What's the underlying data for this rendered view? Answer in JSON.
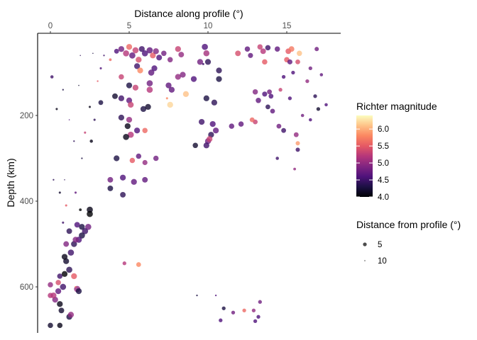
{
  "chart_data": {
    "type": "scatter",
    "xlabel": "Distance along profile (°)",
    "ylabel": "Depth (km)",
    "x_axis_position": "top",
    "y_axis_reversed": true,
    "xlim": [
      -0.8,
      18.4
    ],
    "ylim": [
      707,
      -10
    ],
    "x_ticks": [
      0,
      5,
      10,
      15
    ],
    "y_ticks": [
      200,
      400,
      600
    ],
    "grid": false,
    "color_legend": {
      "title": "Richter magnitude",
      "ticks": [
        4.0,
        4.5,
        5.0,
        5.5,
        6.0
      ],
      "tick_labels": [
        "4.0",
        "4.5",
        "5.0",
        "5.5",
        "6.0"
      ],
      "range": [
        4.0,
        6.4
      ],
      "palette": "magma"
    },
    "size_legend": {
      "title": "Distance from profile (°)",
      "entries": [
        5,
        10
      ],
      "entry_labels": [
        "5",
        "10"
      ]
    },
    "point_fields": [
      "distance_along_profile",
      "depth",
      "magnitude",
      "distance_from_profile"
    ],
    "points": [
      [
        4.2,
        50,
        4.6,
        3
      ],
      [
        4.5,
        45,
        4.8,
        1
      ],
      [
        4.8,
        55,
        5.2,
        0.5
      ],
      [
        5.0,
        40,
        5.6,
        1
      ],
      [
        5.2,
        60,
        4.7,
        0.3
      ],
      [
        5.4,
        48,
        5.3,
        0.5
      ],
      [
        5.6,
        70,
        5.4,
        0.8
      ],
      [
        5.8,
        45,
        4.5,
        1
      ],
      [
        6.0,
        55,
        4.6,
        0.5
      ],
      [
        6.3,
        48,
        4.7,
        0.4
      ],
      [
        6.5,
        60,
        5.5,
        1
      ],
      [
        6.7,
        50,
        4.9,
        0.8
      ],
      [
        6.9,
        65,
        4.6,
        1.2
      ],
      [
        7.2,
        55,
        4.8,
        2
      ],
      [
        7.6,
        70,
        4.9,
        2
      ],
      [
        8.1,
        45,
        5.3,
        1
      ],
      [
        8.3,
        58,
        5.0,
        1.5
      ],
      [
        9.8,
        40,
        4.6,
        0.5
      ],
      [
        9.9,
        55,
        5.1,
        0.7
      ],
      [
        10.0,
        75,
        4.4,
        1
      ],
      [
        9.5,
        75,
        4.8,
        1
      ],
      [
        11.9,
        55,
        5.4,
        1.5
      ],
      [
        12.5,
        45,
        4.7,
        2
      ],
      [
        12.7,
        60,
        4.7,
        2.5
      ],
      [
        13.3,
        40,
        5.3,
        2
      ],
      [
        13.5,
        50,
        5.2,
        1.5
      ],
      [
        13.8,
        42,
        4.5,
        2
      ],
      [
        14.4,
        45,
        4.7,
        2
      ],
      [
        15.1,
        50,
        5.5,
        1.5
      ],
      [
        15.3,
        45,
        5.7,
        1.5
      ],
      [
        15.8,
        55,
        6.1,
        2
      ],
      [
        16.9,
        45,
        4.8,
        4
      ],
      [
        13.6,
        75,
        5.5,
        2
      ],
      [
        15.0,
        70,
        5.5,
        2
      ],
      [
        15.2,
        75,
        4.7,
        2.5
      ],
      [
        15.7,
        75,
        5.4,
        3
      ],
      [
        5.5,
        85,
        4.5,
        1
      ],
      [
        5.7,
        95,
        5.8,
        1
      ],
      [
        4.5,
        110,
        5.3,
        2
      ],
      [
        6.4,
        100,
        4.7,
        0.5
      ],
      [
        6.6,
        90,
        4.6,
        1
      ],
      [
        8.1,
        110,
        5.0,
        1
      ],
      [
        8.4,
        105,
        4.9,
        1
      ],
      [
        9.1,
        115,
        4.6,
        1
      ],
      [
        10.7,
        95,
        4.4,
        1
      ],
      [
        10.7,
        115,
        4.3,
        1
      ],
      [
        6.3,
        125,
        4.8,
        0.5
      ],
      [
        6.3,
        140,
        5.2,
        0.5
      ],
      [
        7.5,
        130,
        4.7,
        1
      ],
      [
        7.7,
        140,
        4.7,
        1
      ],
      [
        5.0,
        130,
        4.3,
        1
      ],
      [
        5.4,
        135,
        5.3,
        1
      ],
      [
        8.6,
        150,
        6.1,
        1
      ],
      [
        9.9,
        160,
        4.3,
        1
      ],
      [
        10.4,
        170,
        4.4,
        1
      ],
      [
        7.6,
        175,
        6.2,
        0.8
      ],
      [
        5.0,
        165,
        4.7,
        1
      ],
      [
        5.1,
        175,
        5.3,
        1
      ],
      [
        4.5,
        160,
        4.5,
        1
      ],
      [
        4.1,
        155,
        4.2,
        1.5
      ],
      [
        3.2,
        170,
        4.3,
        3
      ],
      [
        13.0,
        145,
        4.9,
        2
      ],
      [
        13.6,
        150,
        4.6,
        2.5
      ],
      [
        13.2,
        165,
        4.7,
        2
      ],
      [
        13.9,
        145,
        4.8,
        3
      ],
      [
        14.0,
        155,
        4.6,
        3
      ],
      [
        13.8,
        180,
        4.4,
        3
      ],
      [
        14.1,
        190,
        4.7,
        3
      ],
      [
        13.0,
        215,
        5.3,
        3
      ],
      [
        12.8,
        210,
        5.6,
        3
      ],
      [
        5.9,
        185,
        4.3,
        1
      ],
      [
        6.2,
        180,
        4.2,
        1
      ],
      [
        4.5,
        205,
        4.4,
        1
      ],
      [
        5.0,
        210,
        5.0,
        1
      ],
      [
        4.9,
        225,
        4.1,
        1
      ],
      [
        5.1,
        245,
        5.2,
        0.5
      ],
      [
        5.5,
        235,
        4.6,
        1
      ],
      [
        6.0,
        235,
        5.6,
        2
      ],
      [
        4.8,
        250,
        4.1,
        0.5
      ],
      [
        9.6,
        215,
        4.5,
        1
      ],
      [
        10.3,
        220,
        4.6,
        1
      ],
      [
        10.5,
        235,
        4.7,
        1
      ],
      [
        10.2,
        245,
        4.4,
        1
      ],
      [
        10.0,
        260,
        4.8,
        0.8
      ],
      [
        9.9,
        270,
        4.5,
        1
      ],
      [
        10.1,
        255,
        5.3,
        1
      ],
      [
        9.2,
        270,
        4.2,
        2
      ],
      [
        11.5,
        225,
        4.7,
        2
      ],
      [
        12.1,
        220,
        4.7,
        2
      ],
      [
        14.5,
        225,
        4.8,
        3
      ],
      [
        14.8,
        235,
        4.5,
        3
      ],
      [
        15.6,
        245,
        5.0,
        3
      ],
      [
        15.7,
        265,
        5.9,
        4
      ],
      [
        15.7,
        280,
        4.5,
        4
      ],
      [
        4.2,
        300,
        4.3,
        1
      ],
      [
        5.2,
        305,
        5.5,
        2
      ],
      [
        5.6,
        295,
        4.7,
        2
      ],
      [
        6.0,
        310,
        5.0,
        2.5
      ],
      [
        6.7,
        300,
        4.8,
        2
      ],
      [
        4.6,
        345,
        4.6,
        1
      ],
      [
        5.3,
        355,
        4.7,
        1
      ],
      [
        6.0,
        350,
        4.7,
        1.5
      ],
      [
        3.8,
        370,
        4.3,
        1.5
      ],
      [
        4.6,
        385,
        4.4,
        1.5
      ],
      [
        3.8,
        350,
        4.8,
        1.5
      ],
      [
        2.5,
        420,
        4.1,
        0.5
      ],
      [
        2.5,
        430,
        4.0,
        0.5
      ],
      [
        2.4,
        460,
        4.8,
        0.5
      ],
      [
        2.2,
        470,
        4.5,
        0.5
      ],
      [
        2.0,
        480,
        4.3,
        0.5
      ],
      [
        1.8,
        490,
        4.6,
        0.5
      ],
      [
        1.5,
        500,
        4.4,
        0.8
      ],
      [
        1.3,
        520,
        4.5,
        0.5
      ],
      [
        1.0,
        540,
        4.2,
        1
      ],
      [
        1.2,
        560,
        4.4,
        0.5
      ],
      [
        0.9,
        570,
        4.0,
        1
      ],
      [
        1.5,
        575,
        5.5,
        1
      ],
      [
        0.8,
        600,
        4.5,
        0.5
      ],
      [
        0.5,
        610,
        4.7,
        1
      ],
      [
        0.3,
        630,
        4.9,
        1
      ],
      [
        0.2,
        620,
        5.2,
        1
      ],
      [
        0.6,
        640,
        4.1,
        1
      ],
      [
        1.7,
        605,
        5.0,
        0.2
      ],
      [
        1.8,
        610,
        4.3,
        1
      ],
      [
        1.2,
        670,
        4.3,
        1
      ],
      [
        1.3,
        665,
        5.0,
        0.8
      ],
      [
        0.7,
        655,
        4.2,
        1.5
      ],
      [
        0.0,
        690,
        4.2,
        2
      ],
      [
        0.6,
        690,
        4.1,
        2
      ],
      [
        1.0,
        500,
        4.9,
        1.5
      ],
      [
        0.6,
        575,
        4.5,
        2
      ],
      [
        1.6,
        490,
        4.9,
        1
      ],
      [
        2.0,
        460,
        4.3,
        1
      ],
      [
        1.7,
        455,
        4.6,
        1.5
      ],
      [
        1.2,
        470,
        4.4,
        1.5
      ],
      [
        0.9,
        530,
        4.1,
        1
      ],
      [
        0.5,
        590,
        5.4,
        2
      ],
      [
        0.0,
        595,
        5.0,
        2
      ],
      [
        0.0,
        620,
        5.2,
        2
      ],
      [
        0.1,
        110,
        4.5,
        6
      ],
      [
        0.4,
        185,
        4.1,
        8
      ],
      [
        0.8,
        140,
        4.3,
        9
      ],
      [
        1.2,
        210,
        4.6,
        10
      ],
      [
        1.5,
        260,
        4.4,
        9
      ],
      [
        1.8,
        130,
        4.2,
        10
      ],
      [
        2.0,
        300,
        4.3,
        9
      ],
      [
        2.2,
        240,
        5.3,
        8
      ],
      [
        2.5,
        180,
        4.1,
        8
      ],
      [
        2.8,
        210,
        4.4,
        8
      ],
      [
        3.0,
        120,
        5.5,
        9
      ],
      [
        3.2,
        90,
        4.6,
        8
      ],
      [
        0.2,
        350,
        4.4,
        9
      ],
      [
        0.6,
        380,
        4.2,
        8
      ],
      [
        1.0,
        410,
        5.5,
        8
      ],
      [
        0.9,
        350,
        4.4,
        10
      ],
      [
        1.6,
        380,
        4.7,
        8
      ],
      [
        1.9,
        420,
        4.0,
        7
      ],
      [
        2.6,
        260,
        4.1,
        6
      ],
      [
        3.4,
        60,
        4.5,
        9
      ],
      [
        3.8,
        70,
        5.6,
        7
      ],
      [
        2.7,
        55,
        4.3,
        10
      ],
      [
        1.9,
        60,
        4.4,
        10
      ],
      [
        7.4,
        160,
        5.8,
        8
      ],
      [
        9.7,
        80,
        4.5,
        8
      ],
      [
        9.3,
        620,
        4.3,
        9
      ],
      [
        10.5,
        620,
        4.6,
        9
      ],
      [
        1.6,
        600,
        5.7,
        9
      ],
      [
        0.8,
        450,
        4.5,
        8
      ],
      [
        11.0,
        650,
        4.3,
        5
      ],
      [
        11.6,
        660,
        4.8,
        5
      ],
      [
        12.3,
        655,
        5.6,
        5
      ],
      [
        12.9,
        655,
        5.0,
        5
      ],
      [
        13.3,
        635,
        4.8,
        5
      ],
      [
        13.2,
        670,
        4.6,
        5
      ],
      [
        13.0,
        680,
        4.6,
        5
      ],
      [
        10.8,
        678,
        4.6,
        5
      ],
      [
        4.7,
        545,
        5.2,
        5
      ],
      [
        5.6,
        548,
        5.8,
        3
      ],
      [
        16.5,
        90,
        4.8,
        5
      ],
      [
        17.2,
        105,
        4.7,
        6
      ],
      [
        17.5,
        175,
        4.6,
        6
      ],
      [
        16.8,
        155,
        4.4,
        5
      ],
      [
        16.3,
        120,
        5.0,
        5
      ],
      [
        15.4,
        100,
        4.6,
        5
      ],
      [
        14.8,
        110,
        4.6,
        5
      ],
      [
        14.6,
        140,
        5.3,
        5
      ],
      [
        15.2,
        160,
        4.6,
        5
      ],
      [
        16.0,
        200,
        4.8,
        6
      ],
      [
        16.5,
        210,
        4.6,
        6
      ],
      [
        17.0,
        185,
        4.2,
        5
      ],
      [
        15.5,
        325,
        5.0,
        7
      ],
      [
        14.4,
        300,
        4.5,
        6
      ]
    ]
  }
}
